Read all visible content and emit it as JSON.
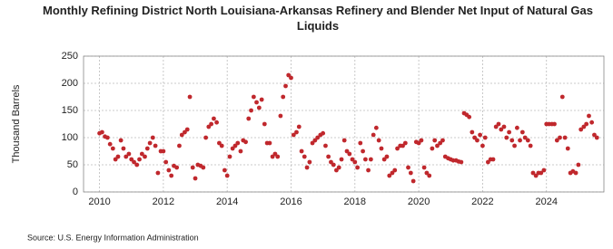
{
  "chart_data": {
    "type": "scatter",
    "title": "Monthly Refining District North Louisiana-Arkansas Refinery and Blender Net Input of Natural Gas Liquids",
    "y_label": "Thousand Barrels",
    "source": "Source: U.S. Energy Information Administration",
    "color": "#c0282d",
    "grid": true,
    "xlim": [
      2009.5,
      2025.8
    ],
    "xticks": [
      2010,
      2012,
      2014,
      2016,
      2018,
      2020,
      2022,
      2024
    ],
    "ylim": [
      0,
      250
    ],
    "yticks": [
      0,
      50,
      100,
      150,
      200,
      250
    ],
    "x": [
      2010.0,
      2010.08,
      2010.17,
      2010.25,
      2010.33,
      2010.42,
      2010.5,
      2010.58,
      2010.67,
      2010.75,
      2010.83,
      2010.92,
      2011.0,
      2011.08,
      2011.17,
      2011.25,
      2011.33,
      2011.42,
      2011.5,
      2011.58,
      2011.67,
      2011.75,
      2011.83,
      2011.92,
      2012.0,
      2012.08,
      2012.17,
      2012.25,
      2012.33,
      2012.42,
      2012.5,
      2012.58,
      2012.67,
      2012.75,
      2012.83,
      2012.92,
      2013.0,
      2013.08,
      2013.17,
      2013.25,
      2013.33,
      2013.42,
      2013.5,
      2013.58,
      2013.67,
      2013.75,
      2013.83,
      2013.92,
      2014.0,
      2014.08,
      2014.17,
      2014.25,
      2014.33,
      2014.42,
      2014.5,
      2014.58,
      2014.67,
      2014.75,
      2014.83,
      2014.92,
      2015.0,
      2015.08,
      2015.17,
      2015.25,
      2015.33,
      2015.42,
      2015.5,
      2015.58,
      2015.67,
      2015.75,
      2015.83,
      2015.92,
      2016.0,
      2016.08,
      2016.17,
      2016.25,
      2016.33,
      2016.42,
      2016.5,
      2016.58,
      2016.67,
      2016.75,
      2016.83,
      2016.92,
      2017.0,
      2017.08,
      2017.17,
      2017.25,
      2017.33,
      2017.42,
      2017.5,
      2017.58,
      2017.67,
      2017.75,
      2017.83,
      2017.92,
      2018.0,
      2018.08,
      2018.17,
      2018.25,
      2018.33,
      2018.42,
      2018.5,
      2018.58,
      2018.67,
      2018.75,
      2018.83,
      2018.92,
      2019.0,
      2019.08,
      2019.17,
      2019.25,
      2019.33,
      2019.42,
      2019.5,
      2019.58,
      2019.67,
      2019.75,
      2019.83,
      2019.92,
      2020.0,
      2020.08,
      2020.17,
      2020.25,
      2020.33,
      2020.42,
      2020.5,
      2020.58,
      2020.67,
      2020.75,
      2020.83,
      2020.92,
      2021.0,
      2021.08,
      2021.17,
      2021.25,
      2021.33,
      2021.42,
      2021.5,
      2021.58,
      2021.67,
      2021.75,
      2021.83,
      2021.92,
      2022.0,
      2022.08,
      2022.17,
      2022.25,
      2022.33,
      2022.42,
      2022.5,
      2022.58,
      2022.67,
      2022.75,
      2022.83,
      2022.92,
      2023.0,
      2023.08,
      2023.17,
      2023.25,
      2023.33,
      2023.42,
      2023.5,
      2023.58,
      2023.67,
      2023.75,
      2023.83,
      2023.92,
      2024.0,
      2024.08,
      2024.17,
      2024.25,
      2024.33,
      2024.42,
      2024.5,
      2024.58,
      2024.67,
      2024.75,
      2024.83,
      2024.92,
      2025.0,
      2025.08,
      2025.17,
      2025.25,
      2025.33,
      2025.42,
      2025.5,
      2025.58
    ],
    "values": [
      108,
      110,
      102,
      100,
      88,
      80,
      60,
      65,
      95,
      80,
      65,
      70,
      60,
      55,
      50,
      60,
      70,
      65,
      80,
      90,
      100,
      85,
      35,
      75,
      75,
      55,
      40,
      30,
      48,
      45,
      85,
      105,
      110,
      115,
      175,
      45,
      25,
      50,
      48,
      45,
      100,
      120,
      125,
      135,
      128,
      90,
      85,
      40,
      30,
      65,
      80,
      85,
      90,
      75,
      95,
      92,
      135,
      150,
      175,
      165,
      155,
      170,
      125,
      90,
      90,
      65,
      70,
      65,
      140,
      175,
      195,
      215,
      210,
      105,
      110,
      120,
      75,
      65,
      45,
      55,
      90,
      95,
      100,
      105,
      108,
      85,
      65,
      55,
      50,
      40,
      45,
      60,
      95,
      75,
      70,
      60,
      55,
      45,
      90,
      75,
      60,
      40,
      60,
      105,
      118,
      95,
      80,
      60,
      65,
      30,
      35,
      40,
      80,
      85,
      85,
      90,
      45,
      35,
      20,
      92,
      90,
      95,
      45,
      35,
      30,
      80,
      95,
      85,
      90,
      95,
      65,
      62,
      60,
      58,
      58,
      56,
      55,
      145,
      142,
      138,
      110,
      100,
      95,
      105,
      85,
      100,
      55,
      60,
      60,
      120,
      125,
      115,
      120,
      100,
      110,
      95,
      85,
      118,
      95,
      110,
      100,
      95,
      85,
      35,
      30,
      35,
      35,
      40,
      125,
      125,
      125,
      125,
      95,
      100,
      175,
      100,
      80,
      35,
      38,
      35,
      50,
      115,
      120,
      125,
      140,
      128,
      105,
      100
    ]
  }
}
